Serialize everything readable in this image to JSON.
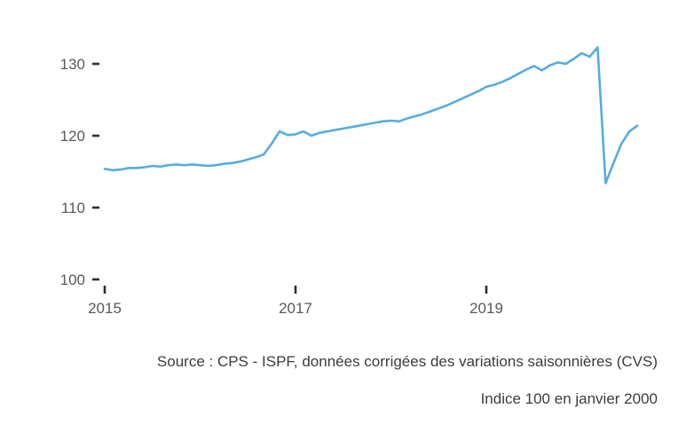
{
  "chart_data": {
    "type": "line",
    "x": [
      "2015-01",
      "2015-02",
      "2015-03",
      "2015-04",
      "2015-05",
      "2015-06",
      "2015-07",
      "2015-08",
      "2015-09",
      "2015-10",
      "2015-11",
      "2015-12",
      "2016-01",
      "2016-02",
      "2016-03",
      "2016-04",
      "2016-05",
      "2016-06",
      "2016-07",
      "2016-08",
      "2016-09",
      "2016-10",
      "2016-11",
      "2016-12",
      "2017-01",
      "2017-02",
      "2017-03",
      "2017-04",
      "2017-05",
      "2017-06",
      "2017-07",
      "2017-08",
      "2017-09",
      "2017-10",
      "2017-11",
      "2017-12",
      "2018-01",
      "2018-02",
      "2018-03",
      "2018-04",
      "2018-05",
      "2018-06",
      "2018-07",
      "2018-08",
      "2018-09",
      "2018-10",
      "2018-11",
      "2018-12",
      "2019-01",
      "2019-02",
      "2019-03",
      "2019-04",
      "2019-05",
      "2019-06",
      "2019-07",
      "2019-08",
      "2019-09",
      "2019-10",
      "2019-11",
      "2019-12",
      "2020-01",
      "2020-02",
      "2020-03",
      "2020-04",
      "2020-05",
      "2020-06",
      "2020-07",
      "2020-08"
    ],
    "series": [
      {
        "name": "index",
        "color": "#55ade0",
        "values": [
          115.4,
          115.2,
          115.3,
          115.5,
          115.5,
          115.6,
          115.8,
          115.7,
          115.9,
          116.0,
          115.9,
          116.0,
          115.9,
          115.8,
          115.9,
          116.1,
          116.2,
          116.4,
          116.7,
          117.0,
          117.4,
          118.9,
          120.6,
          120.1,
          120.2,
          120.6,
          120.0,
          120.4,
          120.6,
          120.8,
          121.0,
          121.2,
          121.4,
          121.6,
          121.8,
          122.0,
          122.1,
          122.0,
          122.4,
          122.7,
          123.0,
          123.4,
          123.8,
          124.2,
          124.7,
          125.2,
          125.7,
          126.2,
          126.8,
          127.1,
          127.5,
          128.0,
          128.6,
          129.2,
          129.7,
          129.1,
          129.8,
          130.2,
          130.0,
          130.7,
          131.5,
          131.0,
          132.3,
          113.4,
          116.2,
          118.9,
          120.6,
          121.4
        ]
      }
    ],
    "y_ticks": [
      100,
      110,
      120,
      130
    ],
    "x_ticks": [
      {
        "label": "2015",
        "month_index": 0
      },
      {
        "label": "2017",
        "month_index": 24
      },
      {
        "label": "2019",
        "month_index": 48
      }
    ],
    "ylim": [
      100,
      133
    ],
    "grid": false,
    "legend": false
  },
  "source": {
    "line1": "Source : CPS - ISPF, données corrigées des variations saisonnières (CVS)",
    "line2": "Indice 100 en janvier 2000"
  }
}
